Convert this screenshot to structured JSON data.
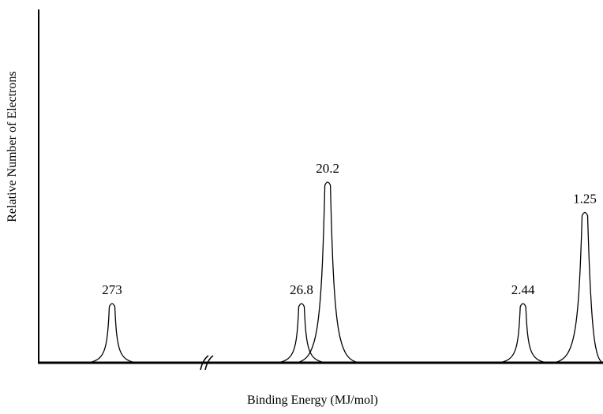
{
  "chart_data": {
    "type": "line",
    "title": "",
    "xlabel": "Binding Energy (MJ/mol)",
    "ylabel": "Relative Number of Electrons",
    "x_axis_reversed": true,
    "axis_break": true,
    "x_ticks": "none",
    "y_ticks": "none",
    "grid": false,
    "legend": "none",
    "line_color": "#000000",
    "peaks": [
      {
        "label": "273",
        "binding_energy": 273,
        "relative_height": 2
      },
      {
        "label": "26.8",
        "binding_energy": 26.8,
        "relative_height": 2
      },
      {
        "label": "20.2",
        "binding_energy": 20.2,
        "relative_height": 6
      },
      {
        "label": "2.44",
        "binding_energy": 2.44,
        "relative_height": 2
      },
      {
        "label": "1.25",
        "binding_energy": 1.25,
        "relative_height": 5
      }
    ]
  }
}
